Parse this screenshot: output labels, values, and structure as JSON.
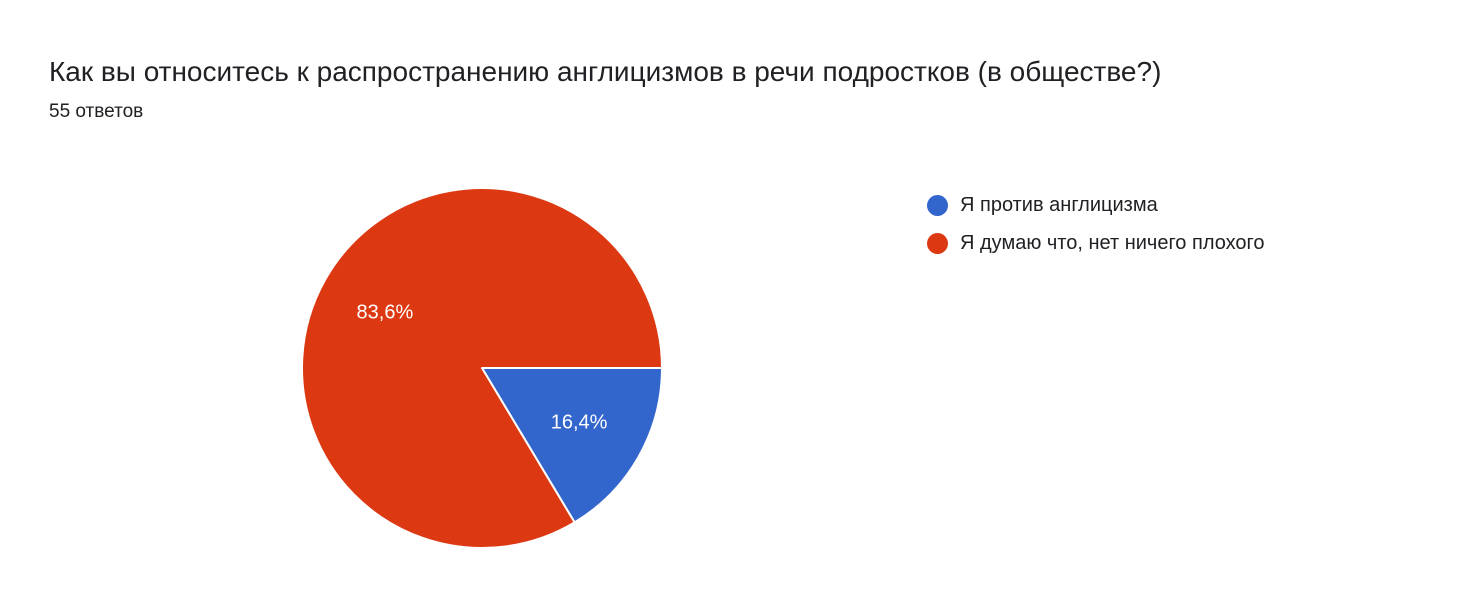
{
  "header": {
    "title": "Как вы относитесь к распространению англицизмов в речи подростков (в обществе?)",
    "responses": "55 ответов"
  },
  "chart_data": {
    "type": "pie",
    "total_responses": 55,
    "slices": [
      {
        "label": "Я против англицизма",
        "value": 16.4,
        "display": "16,4%",
        "color": "#3366cc"
      },
      {
        "label": "Я думаю что, нет ничего плохого",
        "value": 83.6,
        "display": "83,6%",
        "color": "#dc3912"
      }
    ],
    "start_angle": "3 o'clock",
    "direction": "clockwise",
    "legend_position": "right"
  }
}
